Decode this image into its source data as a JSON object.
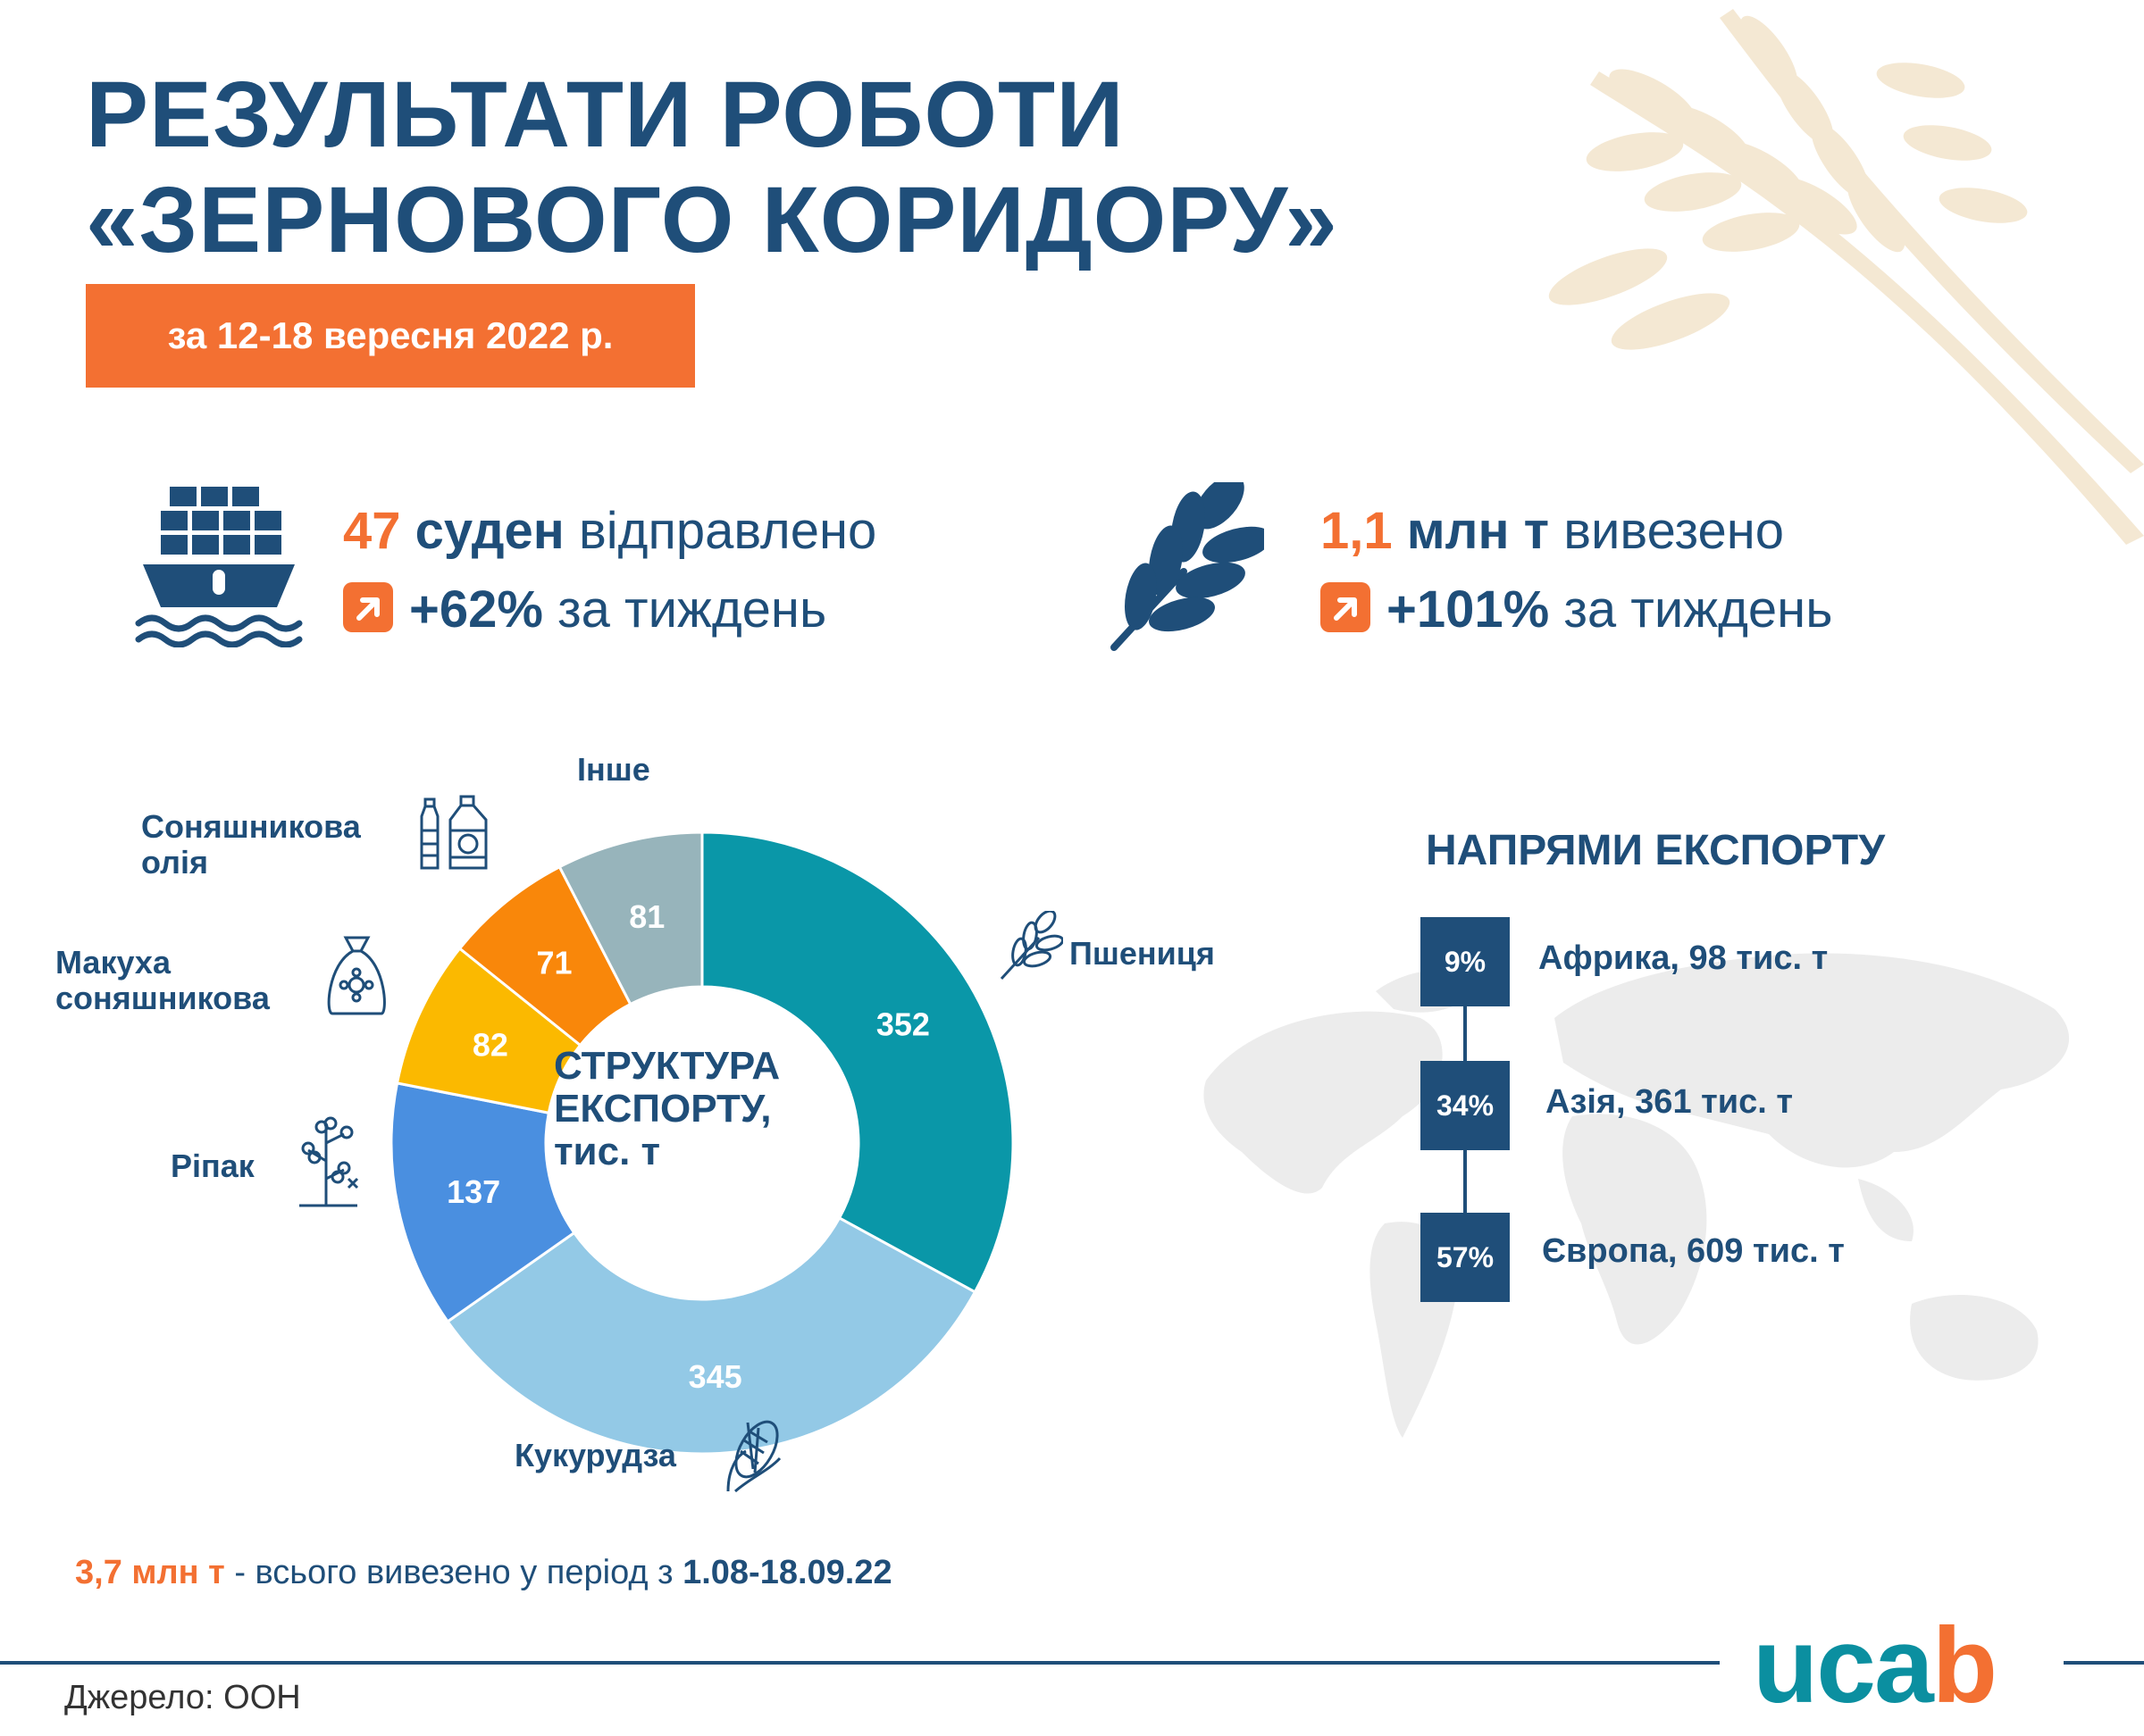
{
  "header": {
    "title_line1": "РЕЗУЛЬТАТИ РОБОТИ",
    "title_line2": "«ЗЕРНОВОГО КОРИДОРУ»",
    "period": "за 12-18 вересня 2022 р."
  },
  "stats": {
    "ships": {
      "value": "47",
      "unit": "суден",
      "text": "відправлено",
      "change": "+62%",
      "change_text": "за тиждень"
    },
    "tonnage": {
      "value": "1,1",
      "unit": "млн т",
      "text": "вивезено",
      "change": "+101%",
      "change_text": "за тиждень"
    }
  },
  "chart_data": {
    "type": "pie",
    "center_label": [
      "СТРУКТУРА",
      "ЕКСПОРТУ,",
      "тис. т"
    ],
    "slices": [
      {
        "label": "Пшениця",
        "value": 352,
        "color": "#0a97a8"
      },
      {
        "label": "Кукурудза",
        "value": 345,
        "color": "#93c9e6"
      },
      {
        "label": "Ріпак",
        "value": 137,
        "color": "#4a8fe0"
      },
      {
        "label": "Макуха соняшникова",
        "value": 82,
        "color": "#fbb900"
      },
      {
        "label": "Соняшникова олія",
        "value": 71,
        "color": "#f9870a"
      },
      {
        "label": "Інше",
        "value": 81,
        "color": "#97b4bb"
      }
    ]
  },
  "labels": {
    "wheat": "Пшениця",
    "corn": "Кукурудза",
    "rapeseed": "Ріпак",
    "meal_line1": "Макуха",
    "meal_line2": "соняшникова",
    "oil_line1": "Соняшникова",
    "oil_line2": "олія",
    "other": "Інше"
  },
  "directions": {
    "title": "НАПРЯМИ ЕКСПОРТУ",
    "items": [
      {
        "pct": "9%",
        "label": "Африка, 98 тис. т"
      },
      {
        "pct": "34%",
        "label": "Азія, 361 тис. т"
      },
      {
        "pct": "57%",
        "label": "Європа, 609 тис. т"
      }
    ]
  },
  "footer": {
    "total_value": "3,7 млн т",
    "total_text": " - всього вивезено у період з ",
    "total_period": "1.08-18.09.22",
    "source": "Джерело: ООН",
    "logo_main": "uca",
    "logo_dot": "b"
  },
  "colors": {
    "accent": "#f37032",
    "primary": "#1f4e79",
    "logo": "#0b8fa0"
  }
}
